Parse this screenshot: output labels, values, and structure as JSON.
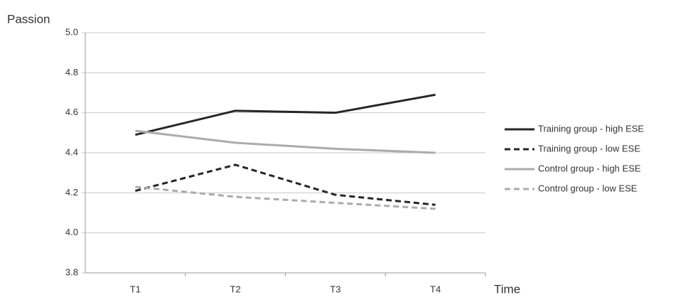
{
  "chart_data": {
    "type": "line",
    "y_label": "Passion",
    "x_label": "Time",
    "categories": [
      "T1",
      "T2",
      "T3",
      "T4"
    ],
    "series": [
      {
        "name": "Training group - high ESE",
        "color": "#262626",
        "dashed": false,
        "values": [
          4.49,
          4.61,
          4.6,
          4.69
        ]
      },
      {
        "name": "Training group - low ESE",
        "color": "#262626",
        "dashed": true,
        "values": [
          4.21,
          4.34,
          4.19,
          4.14
        ]
      },
      {
        "name": "Control group - high ESE",
        "color": "#ababab",
        "dashed": false,
        "values": [
          4.51,
          4.45,
          4.42,
          4.4
        ]
      },
      {
        "name": "Control group - low ESE",
        "color": "#ababab",
        "dashed": true,
        "values": [
          4.23,
          4.18,
          4.15,
          4.12
        ]
      }
    ],
    "ylim": [
      3.8,
      5.0
    ],
    "yticks": [
      3.8,
      {
        "value": 4.0,
        "label": "4.0"
      },
      4.2,
      4.4,
      4.6,
      4.8,
      {
        "value": 5.0,
        "label": "5.0"
      }
    ],
    "grid": true,
    "legend": "right"
  }
}
